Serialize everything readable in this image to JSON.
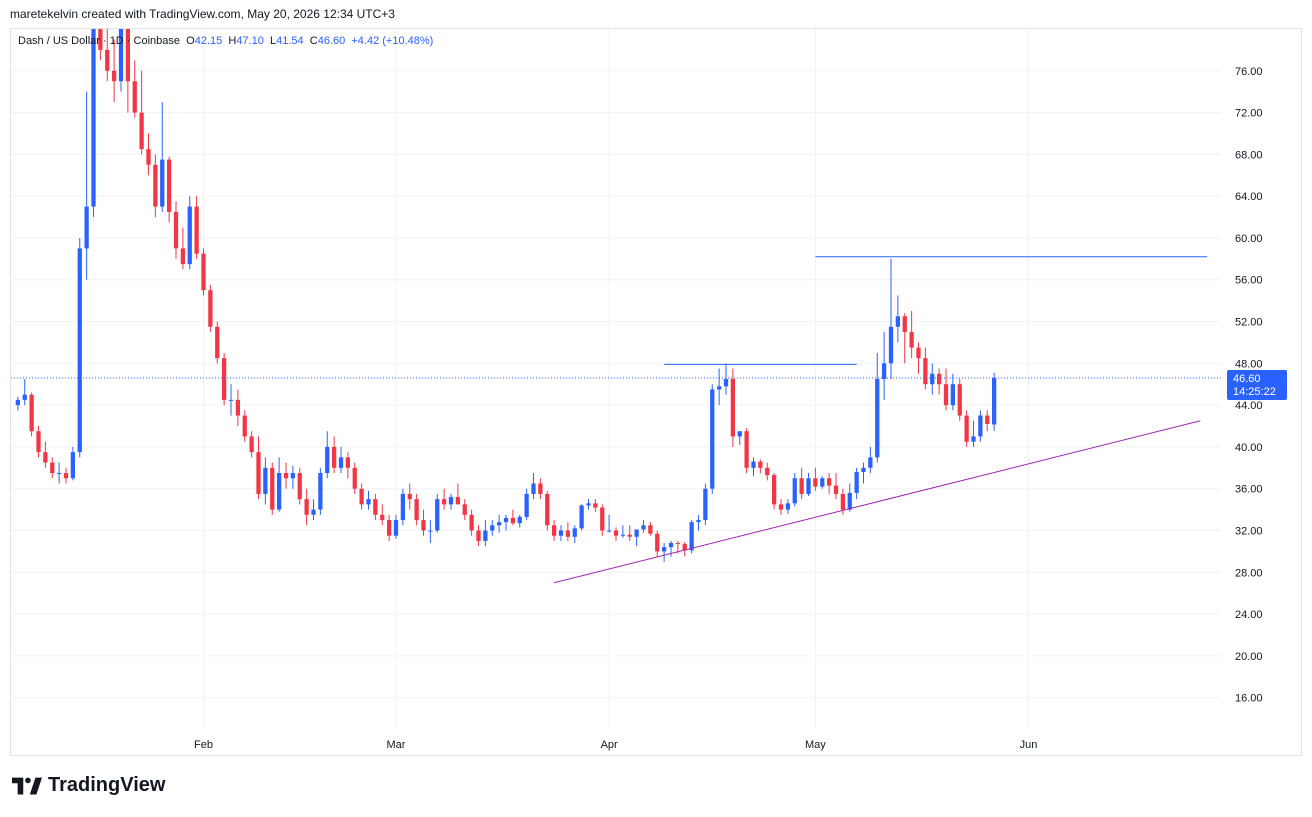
{
  "header": {
    "credit": "maretekelvin created with TradingView.com, May 20, 2026 12:34 UTC+3"
  },
  "legend": {
    "symbol": "Dash / US Dollar · 1D · Coinbase",
    "o_label": "O",
    "o_value": "42.15",
    "h_label": "H",
    "h_value": "47.10",
    "l_label": "L",
    "l_value": "41.54",
    "c_label": "C",
    "c_value": "46.60",
    "change": "+4.42 (+10.48%)"
  },
  "price_tag": {
    "price": "46.60",
    "countdown": "14:25:22"
  },
  "footer": {
    "brand": "TradingView"
  },
  "colors": {
    "up": "#2962ff",
    "down": "#f23645",
    "trend": "#9c27b0",
    "level": "#2962ff",
    "grid": "#f0f3fa",
    "axis_text": "#131722"
  },
  "chart_data": {
    "type": "candlestick",
    "title": "",
    "ylim": [
      13,
      80
    ],
    "yticks": [
      16,
      20,
      24,
      28,
      32,
      36,
      40,
      44,
      48,
      52,
      56,
      60,
      64,
      68,
      72,
      76
    ],
    "ytick_labels": [
      "16.00",
      "20.00",
      "24.00",
      "28.00",
      "32.00",
      "36.00",
      "40.00",
      "44.00",
      "48.00",
      "52.00",
      "56.00",
      "60.00",
      "64.00",
      "68.00",
      "72.00",
      "76.00"
    ],
    "xlim": [
      "2026-01-04",
      "2026-06-29"
    ],
    "xticks": [
      {
        "label": "Feb",
        "date": "2026-02-01"
      },
      {
        "label": "Mar",
        "date": "2026-03-01"
      },
      {
        "label": "Apr",
        "date": "2026-04-01"
      },
      {
        "label": "May",
        "date": "2026-05-01"
      },
      {
        "label": "Jun",
        "date": "2026-06-01"
      }
    ],
    "start_date": "2026-01-05",
    "candles": [
      [
        44.0,
        44.8,
        43.5,
        44.5
      ],
      [
        44.5,
        46.5,
        44.0,
        45.0
      ],
      [
        45.0,
        45.2,
        41.0,
        41.5
      ],
      [
        41.5,
        42.0,
        39.0,
        39.5
      ],
      [
        39.5,
        40.5,
        38.0,
        38.5
      ],
      [
        38.5,
        39.0,
        37.0,
        37.5
      ],
      [
        37.5,
        38.5,
        36.5,
        37.5
      ],
      [
        37.5,
        38.0,
        36.5,
        37.0
      ],
      [
        37.0,
        40.0,
        36.8,
        39.5
      ],
      [
        39.5,
        60.0,
        39.0,
        59.0
      ],
      [
        59.0,
        74.0,
        56.0,
        63.0
      ],
      [
        63.0,
        82.0,
        62.0,
        80.0
      ],
      [
        80.0,
        81.0,
        77.0,
        78.0
      ],
      [
        78.0,
        80.0,
        75.0,
        76.0
      ],
      [
        76.0,
        79.0,
        73.0,
        75.0
      ],
      [
        75.0,
        81.0,
        74.0,
        80.0
      ],
      [
        80.0,
        80.5,
        72.0,
        75.0
      ],
      [
        75.0,
        77.0,
        71.5,
        72.0
      ],
      [
        72.0,
        76.0,
        68.0,
        68.5
      ],
      [
        68.5,
        70.0,
        66.0,
        67.0
      ],
      [
        67.0,
        68.0,
        62.0,
        63.0
      ],
      [
        63.0,
        73.0,
        62.5,
        67.5
      ],
      [
        67.5,
        67.8,
        61.5,
        62.5
      ],
      [
        62.5,
        63.5,
        58.0,
        59.0
      ],
      [
        59.0,
        61.0,
        57.0,
        57.5
      ],
      [
        57.5,
        64.0,
        57.0,
        63.0
      ],
      [
        63.0,
        64.0,
        58.0,
        58.5
      ],
      [
        58.5,
        59.0,
        54.5,
        55.0
      ],
      [
        55.0,
        55.5,
        51.0,
        51.5
      ],
      [
        51.5,
        52.0,
        48.0,
        48.5
      ],
      [
        48.5,
        49.0,
        44.0,
        44.5
      ],
      [
        44.5,
        46.0,
        43.0,
        44.5
      ],
      [
        44.5,
        45.5,
        42.0,
        43.0
      ],
      [
        43.0,
        43.5,
        40.5,
        41.0
      ],
      [
        41.0,
        41.5,
        39.0,
        39.5
      ],
      [
        39.5,
        41.0,
        35.0,
        35.5
      ],
      [
        35.5,
        39.0,
        34.5,
        38.0
      ],
      [
        38.0,
        38.5,
        33.5,
        34.0
      ],
      [
        34.0,
        39.0,
        33.8,
        37.5
      ],
      [
        37.5,
        38.5,
        36.0,
        37.0
      ],
      [
        37.0,
        38.2,
        36.0,
        37.5
      ],
      [
        37.5,
        38.0,
        34.5,
        35.0
      ],
      [
        35.0,
        36.0,
        32.5,
        33.5
      ],
      [
        33.5,
        35.0,
        33.0,
        34.0
      ],
      [
        34.0,
        38.0,
        33.5,
        37.5
      ],
      [
        37.5,
        41.5,
        37.0,
        40.0
      ],
      [
        40.0,
        41.0,
        37.5,
        38.0
      ],
      [
        38.0,
        40.0,
        37.5,
        39.0
      ],
      [
        39.0,
        39.5,
        37.0,
        38.0
      ],
      [
        38.0,
        38.5,
        35.5,
        36.0
      ],
      [
        36.0,
        36.5,
        34.0,
        34.5
      ],
      [
        34.5,
        35.8,
        34.0,
        35.0
      ],
      [
        35.0,
        35.5,
        33.0,
        33.5
      ],
      [
        33.5,
        34.5,
        32.5,
        33.0
      ],
      [
        33.0,
        33.5,
        31.0,
        31.5
      ],
      [
        31.5,
        33.5,
        31.2,
        33.0
      ],
      [
        33.0,
        36.0,
        32.5,
        35.5
      ],
      [
        35.5,
        36.5,
        34.0,
        35.0
      ],
      [
        35.0,
        35.5,
        32.5,
        33.0
      ],
      [
        33.0,
        34.0,
        31.5,
        32.0
      ],
      [
        32.0,
        33.0,
        30.8,
        32.0
      ],
      [
        32.0,
        35.5,
        31.8,
        35.0
      ],
      [
        35.0,
        36.0,
        34.0,
        34.5
      ],
      [
        34.5,
        35.5,
        34.0,
        35.2
      ],
      [
        35.2,
        36.5,
        34.5,
        34.5
      ],
      [
        34.5,
        35.0,
        33.0,
        33.5
      ],
      [
        33.5,
        34.0,
        31.5,
        32.0
      ],
      [
        32.0,
        32.5,
        30.5,
        31.0
      ],
      [
        31.0,
        33.0,
        30.5,
        32.0
      ],
      [
        32.0,
        33.0,
        31.5,
        32.5
      ],
      [
        32.5,
        33.5,
        31.8,
        32.8
      ],
      [
        32.8,
        33.5,
        32.0,
        33.2
      ],
      [
        33.2,
        34.0,
        32.5,
        32.7
      ],
      [
        32.7,
        33.5,
        32.3,
        33.3
      ],
      [
        33.3,
        36.0,
        33.0,
        35.5
      ],
      [
        35.5,
        37.5,
        35.0,
        36.5
      ],
      [
        36.5,
        37.0,
        35.0,
        35.5
      ],
      [
        35.5,
        35.8,
        32.0,
        32.5
      ],
      [
        32.5,
        33.0,
        31.0,
        31.5
      ],
      [
        31.5,
        32.5,
        31.0,
        32.0
      ],
      [
        32.0,
        32.8,
        31.0,
        31.4
      ],
      [
        31.4,
        32.5,
        30.8,
        32.2
      ],
      [
        32.2,
        34.5,
        32.0,
        34.4
      ],
      [
        34.4,
        35.0,
        34.0,
        34.6
      ],
      [
        34.6,
        35.0,
        33.8,
        34.2
      ],
      [
        34.2,
        34.5,
        31.5,
        32.0
      ],
      [
        32.0,
        33.5,
        31.8,
        32.0
      ],
      [
        32.0,
        32.3,
        31.0,
        31.5
      ],
      [
        31.5,
        32.5,
        31.3,
        31.6
      ],
      [
        31.6,
        32.5,
        31.0,
        31.4
      ],
      [
        31.4,
        32.0,
        30.5,
        32.1
      ],
      [
        32.1,
        33.0,
        31.8,
        32.5
      ],
      [
        32.5,
        32.8,
        31.5,
        31.7
      ],
      [
        31.7,
        32.0,
        29.5,
        30.0
      ],
      [
        30.0,
        30.8,
        29.0,
        30.4
      ],
      [
        30.4,
        31.0,
        29.5,
        30.8
      ],
      [
        30.8,
        31.0,
        29.8,
        30.7
      ],
      [
        30.7,
        30.9,
        29.5,
        30.1
      ],
      [
        30.1,
        33.0,
        29.8,
        32.8
      ],
      [
        32.8,
        33.5,
        32.0,
        33.0
      ],
      [
        33.0,
        36.5,
        32.5,
        36.0
      ],
      [
        36.0,
        46.0,
        35.5,
        45.5
      ],
      [
        45.5,
        47.5,
        44.0,
        45.8
      ],
      [
        45.8,
        48.0,
        45.0,
        46.5
      ],
      [
        46.5,
        47.5,
        40.0,
        41.0
      ],
      [
        41.0,
        41.5,
        40.2,
        41.5
      ],
      [
        41.5,
        41.8,
        37.5,
        38.0
      ],
      [
        38.0,
        39.0,
        37.2,
        38.6
      ],
      [
        38.6,
        38.8,
        37.5,
        38.0
      ],
      [
        38.0,
        38.5,
        36.8,
        37.3
      ],
      [
        37.3,
        37.5,
        34.0,
        34.5
      ],
      [
        34.5,
        35.0,
        33.5,
        34.0
      ],
      [
        34.0,
        35.0,
        33.6,
        34.6
      ],
      [
        34.6,
        37.5,
        34.3,
        37.0
      ],
      [
        37.0,
        38.0,
        35.0,
        35.5
      ],
      [
        35.5,
        37.5,
        35.3,
        37.0
      ],
      [
        37.0,
        38.0,
        35.8,
        36.2
      ],
      [
        36.2,
        37.2,
        36.0,
        37.0
      ],
      [
        37.0,
        37.5,
        35.5,
        36.3
      ],
      [
        36.3,
        37.5,
        35.0,
        35.5
      ],
      [
        35.5,
        36.0,
        33.5,
        34.0
      ],
      [
        34.0,
        36.5,
        33.8,
        35.6
      ],
      [
        35.6,
        38.0,
        35.0,
        37.6
      ],
      [
        37.6,
        38.5,
        36.5,
        38.0
      ],
      [
        38.0,
        40.0,
        37.5,
        39.0
      ],
      [
        39.0,
        49.0,
        38.5,
        46.5
      ],
      [
        46.5,
        51.0,
        44.5,
        48.0
      ],
      [
        48.0,
        58.0,
        46.5,
        51.5
      ],
      [
        51.5,
        54.5,
        50.0,
        52.5
      ],
      [
        52.5,
        52.8,
        48.0,
        51.0
      ],
      [
        51.0,
        53.0,
        48.5,
        49.5
      ],
      [
        49.5,
        50.0,
        47.0,
        48.5
      ],
      [
        48.5,
        49.5,
        45.5,
        46.0
      ],
      [
        46.0,
        48.0,
        45.0,
        47.0
      ],
      [
        47.0,
        47.5,
        45.0,
        46.0
      ],
      [
        46.0,
        47.5,
        43.5,
        44.0
      ],
      [
        44.0,
        47.0,
        43.5,
        46.0
      ],
      [
        46.0,
        46.5,
        42.5,
        43.0
      ],
      [
        43.0,
        43.5,
        40.0,
        40.5
      ],
      [
        40.5,
        42.5,
        40.0,
        41.0
      ],
      [
        41.0,
        43.5,
        40.5,
        43.0
      ],
      [
        43.0,
        43.5,
        41.5,
        42.2
      ],
      [
        42.15,
        47.1,
        41.54,
        46.6
      ]
    ],
    "lines": [
      {
        "name": "",
        "kind": "trend",
        "from": {
          "date": "2026-03-24",
          "value": 27.0
        },
        "to": {
          "date": "2026-06-26",
          "value": 42.5
        }
      },
      {
        "name": "",
        "kind": "level",
        "from": {
          "date": "2026-04-09",
          "value": 47.9
        },
        "to": {
          "date": "2026-05-07",
          "value": 47.9
        }
      },
      {
        "name": "",
        "kind": "level",
        "from": {
          "date": "2026-05-01",
          "value": 58.2
        },
        "to": {
          "date": "2026-06-27",
          "value": 58.2
        }
      }
    ],
    "last_price": 46.6
  }
}
